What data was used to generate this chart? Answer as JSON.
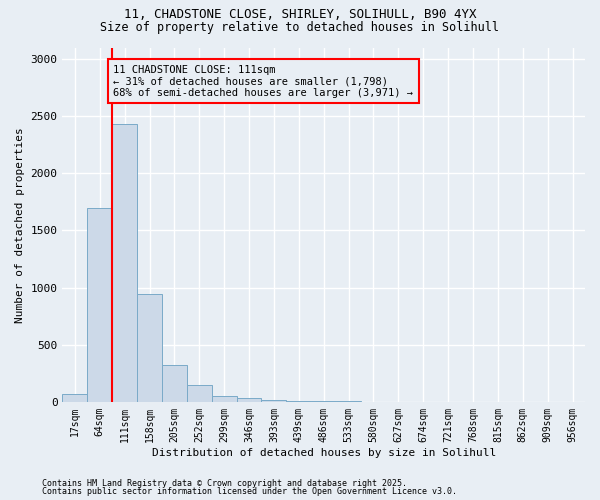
{
  "title_line1": "11, CHADSTONE CLOSE, SHIRLEY, SOLIHULL, B90 4YX",
  "title_line2": "Size of property relative to detached houses in Solihull",
  "xlabel": "Distribution of detached houses by size in Solihull",
  "ylabel": "Number of detached properties",
  "bar_color": "#ccd9e8",
  "bar_edge_color": "#7aaac8",
  "categories": [
    "17sqm",
    "64sqm",
    "111sqm",
    "158sqm",
    "205sqm",
    "252sqm",
    "299sqm",
    "346sqm",
    "393sqm",
    "439sqm",
    "486sqm",
    "533sqm",
    "580sqm",
    "627sqm",
    "674sqm",
    "721sqm",
    "768sqm",
    "815sqm",
    "862sqm",
    "909sqm",
    "956sqm"
  ],
  "values": [
    70,
    1700,
    2430,
    940,
    320,
    145,
    55,
    30,
    15,
    8,
    5,
    3,
    2,
    1.5,
    1,
    1,
    0.5,
    0.5,
    0.5,
    0.3,
    0.3
  ],
  "red_line_index": 2,
  "ylim": [
    0,
    3100
  ],
  "yticks": [
    0,
    500,
    1000,
    1500,
    2000,
    2500,
    3000
  ],
  "annotation_text": "11 CHADSTONE CLOSE: 111sqm\n← 31% of detached houses are smaller (1,798)\n68% of semi-detached houses are larger (3,971) →",
  "footnote1": "Contains HM Land Registry data © Crown copyright and database right 2025.",
  "footnote2": "Contains public sector information licensed under the Open Government Licence v3.0.",
  "background_color": "#e8eef4",
  "grid_color": "#d0d8e0"
}
